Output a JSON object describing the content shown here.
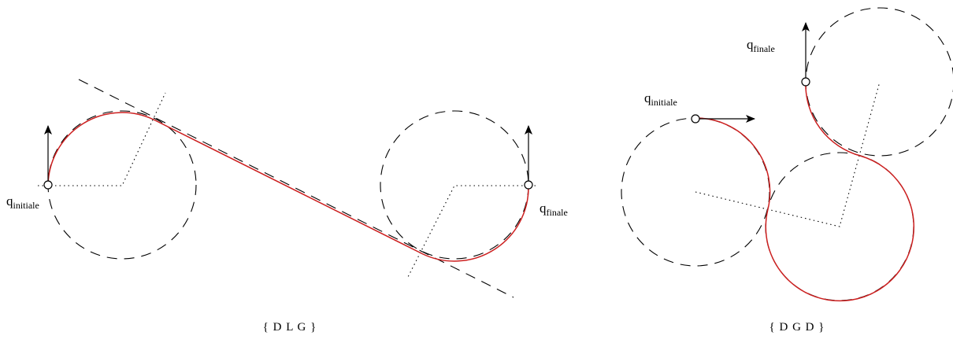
{
  "diagrams": [
    {
      "caption": "{ D L G }",
      "start_label": {
        "q": "q",
        "sub": "initiale"
      },
      "end_label": {
        "q": "q",
        "sub": "finale"
      }
    },
    {
      "caption": "{ D G D }",
      "start_label": {
        "q": "q",
        "sub": "initiale"
      },
      "end_label": {
        "q": "q",
        "sub": "finale"
      }
    }
  ],
  "colors": {
    "path": "#cc1f1f",
    "construction": "#000000"
  }
}
